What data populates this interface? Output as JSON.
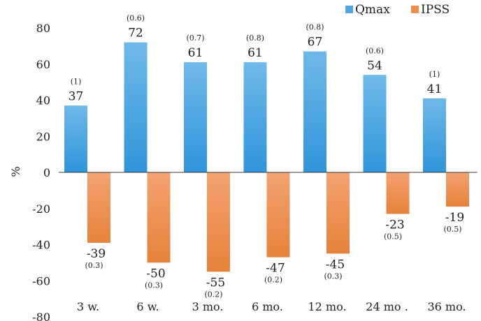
{
  "chart_data": {
    "type": "bar",
    "categories": [
      "3 w.",
      "6 w.",
      "3 mo.",
      "6 mo.",
      "12 mo.",
      "24 mo .",
      "36 mo."
    ],
    "series": [
      {
        "name": "Qmax",
        "values": [
          37,
          72,
          61,
          61,
          67,
          54,
          41
        ],
        "labels": [
          "37",
          "72",
          "61",
          "61",
          "67",
          "54",
          "41"
        ],
        "sublabels": [
          "(1)",
          "(0.6)",
          "(0.7)",
          "(0.8)",
          "(0.8)",
          "(0.6)",
          "(1)"
        ],
        "color": "#4da6e1"
      },
      {
        "name": "IPSS",
        "values": [
          -39,
          -50,
          -55,
          -47,
          -45,
          -23,
          -19
        ],
        "labels": [
          "-39",
          "-50",
          "-55",
          "-47",
          "-45",
          "-23",
          "-19"
        ],
        "sublabels": [
          "(0.3)",
          "(0.3)",
          "(0.2)",
          "(0.2)",
          "(0.3)",
          "(0.5)",
          "(0.5)"
        ],
        "color": "#ee8d4c"
      }
    ],
    "ylabel": "%",
    "ylim": [
      -80,
      80
    ],
    "yticks": [
      "80",
      "60",
      "40",
      "20",
      "0",
      "-20",
      "-40",
      "-60",
      "-80"
    ],
    "grid": false,
    "legend": "top-right"
  }
}
